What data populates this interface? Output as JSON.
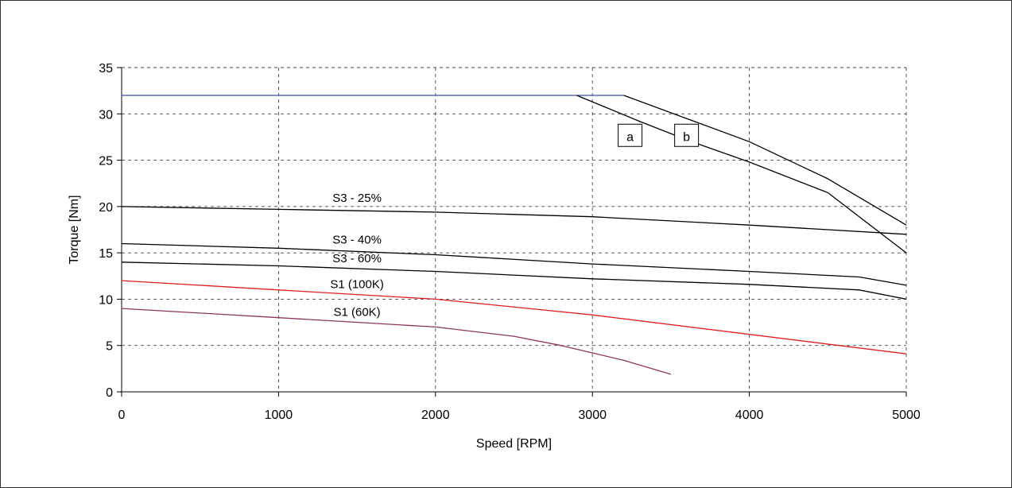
{
  "chart_data": {
    "type": "line",
    "xlabel": "Speed [RPM]",
    "ylabel": "Torque [Nm]",
    "xlim": [
      0,
      5000
    ],
    "ylim": [
      0,
      35
    ],
    "xticks": [
      0,
      1000,
      2000,
      3000,
      4000,
      5000
    ],
    "yticks": [
      0,
      5,
      10,
      15,
      20,
      25,
      30,
      35
    ],
    "grid": true,
    "series": [
      {
        "key": "peak",
        "color": "#3a4fb0",
        "points": [
          [
            0,
            32
          ],
          [
            3200,
            32
          ]
        ]
      },
      {
        "key": "a",
        "color": "#000000",
        "points": [
          [
            2900,
            32
          ],
          [
            3300,
            29.2
          ],
          [
            3600,
            27.2
          ],
          [
            4000,
            24.8
          ],
          [
            4500,
            21.5
          ],
          [
            5000,
            15
          ]
        ]
      },
      {
        "key": "b",
        "color": "#000000",
        "points": [
          [
            3200,
            32
          ],
          [
            3600,
            29.5
          ],
          [
            4000,
            27
          ],
          [
            4500,
            23
          ],
          [
            5000,
            18
          ]
        ]
      },
      {
        "key": "s3_25",
        "name": "S3 - 25%",
        "color": "#000000",
        "points": [
          [
            0,
            20
          ],
          [
            1000,
            19.7
          ],
          [
            2000,
            19.4
          ],
          [
            3000,
            18.9
          ],
          [
            4000,
            18
          ],
          [
            5000,
            17
          ]
        ]
      },
      {
        "key": "s3_40",
        "name": "S3 - 40%",
        "color": "#000000",
        "points": [
          [
            0,
            16
          ],
          [
            1000,
            15.5
          ],
          [
            2000,
            14.8
          ],
          [
            3000,
            13.8
          ],
          [
            4000,
            13
          ],
          [
            4700,
            12.4
          ],
          [
            5000,
            11.5
          ]
        ]
      },
      {
        "key": "s3_60",
        "name": "S3 - 60%",
        "color": "#000000",
        "points": [
          [
            0,
            14
          ],
          [
            1000,
            13.6
          ],
          [
            2000,
            13
          ],
          [
            3000,
            12.2
          ],
          [
            4000,
            11.6
          ],
          [
            4700,
            11
          ],
          [
            5000,
            10
          ]
        ]
      },
      {
        "key": "s1_100k",
        "name": "S1 (100K)",
        "color": "#e02020",
        "points": [
          [
            0,
            12
          ],
          [
            1000,
            11
          ],
          [
            2000,
            10
          ],
          [
            3000,
            8.3
          ],
          [
            4000,
            6.2
          ],
          [
            5000,
            4.1
          ]
        ]
      },
      {
        "key": "s1_60k",
        "name": "S1 (60K)",
        "color": "#8b3560",
        "points": [
          [
            0,
            9
          ],
          [
            1000,
            8
          ],
          [
            2000,
            7
          ],
          [
            2500,
            6
          ],
          [
            2800,
            5
          ],
          [
            3000,
            4.2
          ],
          [
            3200,
            3.4
          ],
          [
            3500,
            1.9
          ]
        ]
      }
    ],
    "annotations": [
      {
        "text": "S3 - 25%",
        "x": 1500,
        "y": 20.5
      },
      {
        "text": "S3 - 40%",
        "x": 1500,
        "y": 16
      },
      {
        "text": "S3 - 60%",
        "x": 1500,
        "y": 14
      },
      {
        "text": "S1 (100K)",
        "x": 1500,
        "y": 11.2
      },
      {
        "text": "S1 (60K)",
        "x": 1500,
        "y": 8.2
      }
    ],
    "boxed_labels": [
      {
        "text": "a",
        "x": 3240,
        "y": 27.6
      },
      {
        "text": "b",
        "x": 3600,
        "y": 27.6
      }
    ]
  }
}
